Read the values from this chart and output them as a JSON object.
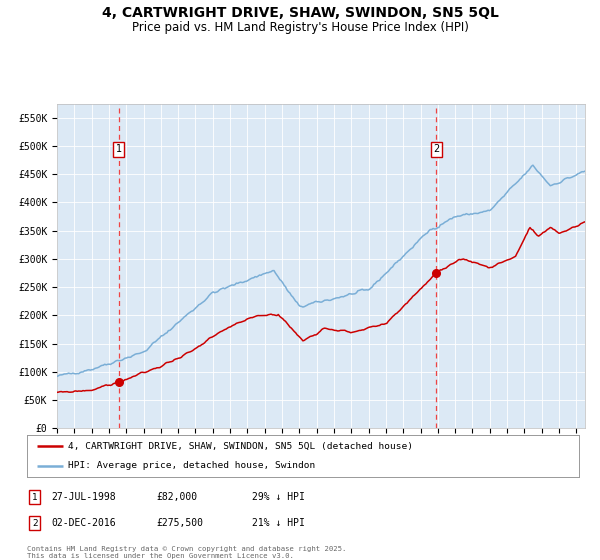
{
  "title": "4, CARTWRIGHT DRIVE, SHAW, SWINDON, SN5 5QL",
  "subtitle": "Price paid vs. HM Land Registry's House Price Index (HPI)",
  "title_fontsize": 10,
  "subtitle_fontsize": 8.5,
  "bg_color": "#dce9f5",
  "fig_bg_color": "#ffffff",
  "hpi_color": "#7aaed6",
  "price_color": "#cc0000",
  "vline_color": "#ee4444",
  "sale1_date_num": 1998.57,
  "sale1_price": 82000,
  "sale2_date_num": 2016.92,
  "sale2_price": 275500,
  "legend_label1": "4, CARTWRIGHT DRIVE, SHAW, SWINDON, SN5 5QL (detached house)",
  "legend_label2": "HPI: Average price, detached house, Swindon",
  "footer": "Contains HM Land Registry data © Crown copyright and database right 2025.\nThis data is licensed under the Open Government Licence v3.0.",
  "ylim": [
    0,
    575000
  ],
  "yticks": [
    0,
    50000,
    100000,
    150000,
    200000,
    250000,
    300000,
    350000,
    400000,
    450000,
    500000,
    550000
  ],
  "ytick_labels": [
    "£0",
    "£50K",
    "£100K",
    "£150K",
    "£200K",
    "£250K",
    "£300K",
    "£350K",
    "£400K",
    "£450K",
    "£500K",
    "£550K"
  ],
  "xstart": 1995.0,
  "xend": 2025.5,
  "ann1_date": "27-JUL-1998",
  "ann1_price": "£82,000",
  "ann1_hpi": "29% ↓ HPI",
  "ann2_date": "02-DEC-2016",
  "ann2_price": "£275,500",
  "ann2_hpi": "21% ↓ HPI"
}
